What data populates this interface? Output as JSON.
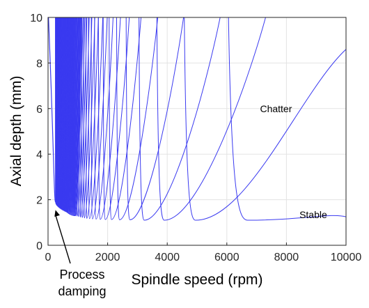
{
  "chart_data": {
    "type": "line",
    "xlabel": "Spindle speed (rpm)",
    "ylabel": "Axial depth (mm)",
    "xlim": [
      0,
      10000
    ],
    "ylim": [
      0,
      10
    ],
    "x_ticks": [
      "0",
      "2000",
      "4000",
      "6000",
      "8000",
      "10000"
    ],
    "y_ticks": [
      "0",
      "2",
      "4",
      "6",
      "8",
      "10"
    ],
    "grid": true,
    "series_color": "#3a3af0",
    "lobes": [
      {
        "min_x": 6700,
        "min_y": 1.1,
        "left_x": 6050,
        "right_x": 10000,
        "right_end_y": 1.25,
        "right_shape": "flat-then-rising"
      },
      {
        "min_x": 4950,
        "min_y": 1.1,
        "left_x": 4570,
        "right_x": 10000,
        "right_end_y": 8.6
      },
      {
        "min_x": 3900,
        "min_y": 1.1,
        "left_x": 3650,
        "right_x": 7400
      },
      {
        "min_x": 3230,
        "min_y": 1.1,
        "left_x": 3050,
        "right_x": 5850
      },
      {
        "min_x": 2750,
        "min_y": 1.12,
        "left_x": 2620,
        "right_x": 4600
      },
      {
        "min_x": 2400,
        "min_y": 1.12,
        "left_x": 2300,
        "right_x": 3720
      },
      {
        "min_x": 2130,
        "min_y": 1.13,
        "left_x": 2050,
        "right_x": 3150
      },
      {
        "min_x": 1920,
        "min_y": 1.13,
        "left_x": 1850,
        "right_x": 2750
      },
      {
        "min_x": 1750,
        "min_y": 1.14,
        "left_x": 1690,
        "right_x": 2450
      },
      {
        "min_x": 1610,
        "min_y": 1.15,
        "left_x": 1560,
        "right_x": 2200
      },
      {
        "min_x": 1490,
        "min_y": 1.16,
        "left_x": 1450,
        "right_x": 2000
      },
      {
        "min_x": 1390,
        "min_y": 1.17,
        "left_x": 1355,
        "right_x": 1850
      },
      {
        "min_x": 1300,
        "min_y": 1.18,
        "left_x": 1270,
        "right_x": 1700
      },
      {
        "min_x": 1220,
        "min_y": 1.2,
        "left_x": 1195,
        "right_x": 1580
      },
      {
        "min_x": 1150,
        "min_y": 1.22,
        "left_x": 1130,
        "right_x": 1480
      },
      {
        "min_x": 1090,
        "min_y": 1.24,
        "left_x": 1070,
        "right_x": 1390
      },
      {
        "min_x": 1030,
        "min_y": 1.26,
        "left_x": 1015,
        "right_x": 1310
      },
      {
        "min_x": 980,
        "min_y": 1.28,
        "left_x": 965,
        "right_x": 1240
      },
      {
        "min_x": 935,
        "min_y": 1.3,
        "left_x": 920,
        "right_x": 1180
      }
    ],
    "dense_band": {
      "x_start": 250,
      "x_end": 920,
      "min_y_start": 1.9,
      "min_y_end": 1.3
    },
    "annotations": {
      "chatter": {
        "text": "Chatter",
        "x": 7650,
        "y": 6.0
      },
      "stable": {
        "text": "Stable",
        "x": 8900,
        "y": 1.35
      },
      "process_damping": {
        "line1": "Process",
        "line2": "damping",
        "arrow_tip_x": 250,
        "arrow_tip_y": 1.55
      }
    }
  }
}
